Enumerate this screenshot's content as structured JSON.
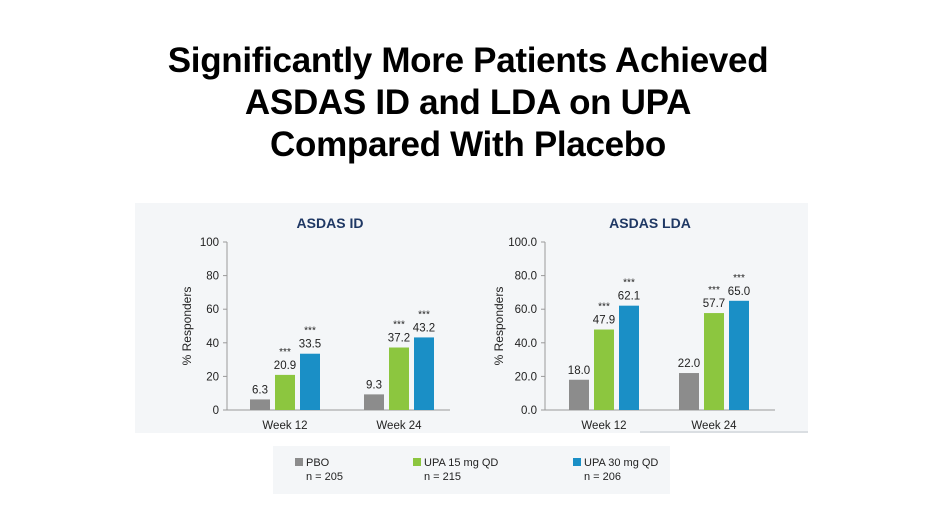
{
  "slide": {
    "title_lines": [
      "Significantly More Patients Achieved",
      "ASDAS ID and LDA on UPA",
      "Compared With Placebo"
    ]
  },
  "colors": {
    "pbo": "#8c8c8c",
    "upa15": "#8cc63f",
    "upa30": "#1a8fc6",
    "title": "#1f3864"
  },
  "chart_data": [
    {
      "type": "bar",
      "title": "ASDAS ID",
      "xlabel": "",
      "ylabel": "% Responders",
      "ylim": [
        0,
        100
      ],
      "yticks": [
        "0",
        "20",
        "40",
        "60",
        "80",
        "100"
      ],
      "categories": [
        "Week 12",
        "Week 24"
      ],
      "series": [
        {
          "name": "PBO",
          "values": [
            6.3,
            9.3
          ],
          "labels": [
            "6.3",
            "9.3"
          ],
          "sig": [
            "",
            ""
          ]
        },
        {
          "name": "UPA 15 mg QD",
          "values": [
            20.9,
            37.2
          ],
          "labels": [
            "20.9",
            "37.2"
          ],
          "sig": [
            "***",
            "***"
          ]
        },
        {
          "name": "UPA 30 mg QD",
          "values": [
            33.5,
            43.2
          ],
          "labels": [
            "33.5",
            "43.2"
          ],
          "sig": [
            "***",
            "***"
          ]
        }
      ]
    },
    {
      "type": "bar",
      "title": "ASDAS LDA",
      "xlabel": "",
      "ylabel": "% Responders",
      "ylim": [
        0,
        100
      ],
      "yticks": [
        "0.0",
        "20.0",
        "40.0",
        "60.0",
        "80.0",
        "100.0"
      ],
      "categories": [
        "Week 12",
        "Week 24"
      ],
      "series": [
        {
          "name": "PBO",
          "values": [
            18.0,
            22.0
          ],
          "labels": [
            "18.0",
            "22.0"
          ],
          "sig": [
            "",
            ""
          ]
        },
        {
          "name": "UPA 15 mg QD",
          "values": [
            47.9,
            57.7
          ],
          "labels": [
            "47.9",
            "57.7"
          ],
          "sig": [
            "***",
            "***"
          ]
        },
        {
          "name": "UPA 30 mg QD",
          "values": [
            62.1,
            65.0
          ],
          "labels": [
            "62.1",
            "65.0"
          ],
          "sig": [
            "***",
            "***"
          ]
        }
      ]
    }
  ],
  "legend": [
    {
      "name": "PBO",
      "n": "n = 205",
      "color_key": "pbo"
    },
    {
      "name": "UPA 15 mg QD",
      "n": "n = 215",
      "color_key": "upa15"
    },
    {
      "name": "UPA 30 mg QD",
      "n": "n = 206",
      "color_key": "upa30"
    }
  ]
}
